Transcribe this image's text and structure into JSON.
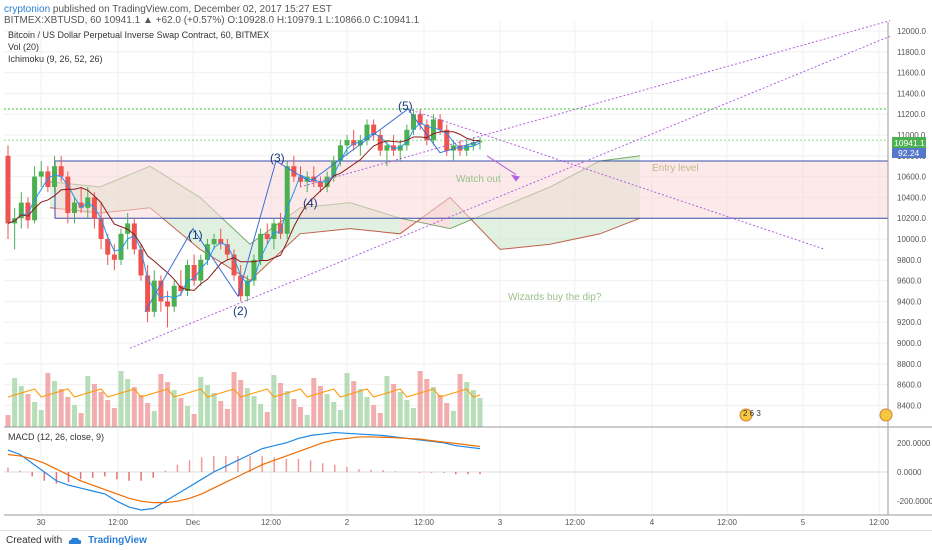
{
  "header": {
    "author": "cryptonion",
    "published_text": "published on TradingView.com, December 02, 2017 15:27 EST",
    "ohlc_line": "BITMEX:XBTUSD, 60  10941.1  ▲ +62.0 (+0.57%)  O:10928.0  H:10979.1  L:10866.0  C:10941.1"
  },
  "legend": {
    "title": "Bitcoin / US Dollar Perpetual Inverse Swap Contract, 60, BITMEX",
    "vol": "Vol (20)",
    "ichimoku": "Ichimoku (9, 26, 52, 26)",
    "macd": "MACD (12, 26, close, 9)"
  },
  "annotations": {
    "watch_out": "Watch out",
    "entry_level": "Entry level",
    "wizards": "Wizards buy the dip?",
    "wave1": "(1)",
    "wave2": "(2)",
    "wave3": "(3)",
    "wave4": "(4)",
    "wave5": "(5)",
    "badge_numbers": "2 6 3"
  },
  "price_badges": {
    "last": "10941.1",
    "second": "92.24"
  },
  "footer": {
    "created_with": "Created with",
    "brand": "TradingView"
  },
  "colors": {
    "up": "#4caf50",
    "down": "#ef5350",
    "kijun": "#8b1a1a",
    "tenkan": "#2196f3",
    "macd": "#1e88e5",
    "signal": "#ef6c00",
    "trend": "#b060e0",
    "level": "#3a4ea8",
    "green_dotted": "#33cc33"
  },
  "chart_data": {
    "type": "candlestick",
    "symbol": "BITMEX:XBTUSD",
    "interval": "60",
    "price_axis": {
      "ticks": [
        12000,
        11800,
        11600,
        11400,
        11200,
        11000,
        10800,
        10600,
        10400,
        10200,
        10000,
        9800,
        9600,
        9400,
        9200,
        9000,
        8800,
        8600,
        8400
      ]
    },
    "macd_axis": {
      "ticks": [
        200.0,
        0.0,
        -200.0
      ],
      "labels": [
        "200.0000",
        "0.0000",
        "-200.0000"
      ]
    },
    "time_axis": {
      "labels": [
        "30",
        "12:00",
        "Dec",
        "12:00",
        "2",
        "12:00",
        "3",
        "12:00",
        "4",
        "12:00",
        "5",
        "12:00"
      ]
    },
    "candles": [
      [
        10800,
        10900,
        10000,
        10150
      ],
      [
        10150,
        10300,
        9900,
        10200
      ],
      [
        10200,
        10450,
        10100,
        10350
      ],
      [
        10350,
        10400,
        10100,
        10180
      ],
      [
        10180,
        10700,
        10150,
        10600
      ],
      [
        10600,
        10750,
        10500,
        10650
      ],
      [
        10650,
        10700,
        10450,
        10500
      ],
      [
        10500,
        10800,
        10450,
        10700
      ],
      [
        10700,
        10800,
        10550,
        10600
      ],
      [
        10600,
        10650,
        10150,
        10250
      ],
      [
        10250,
        10400,
        10150,
        10350
      ],
      [
        10350,
        10500,
        10250,
        10300
      ],
      [
        10300,
        10500,
        10200,
        10400
      ],
      [
        10400,
        10450,
        10100,
        10200
      ],
      [
        10200,
        10350,
        9900,
        10000
      ],
      [
        10000,
        10050,
        9750,
        9850
      ],
      [
        9850,
        9950,
        9700,
        9800
      ],
      [
        9800,
        10100,
        9750,
        10050
      ],
      [
        10050,
        10250,
        9900,
        10150
      ],
      [
        10150,
        10200,
        9850,
        9900
      ],
      [
        9900,
        9950,
        9600,
        9650
      ],
      [
        9650,
        9750,
        9200,
        9300
      ],
      [
        9300,
        9700,
        9250,
        9600
      ],
      [
        9600,
        9650,
        9300,
        9400
      ],
      [
        9400,
        9500,
        9150,
        9350
      ],
      [
        9350,
        9600,
        9300,
        9550
      ],
      [
        9550,
        9700,
        9450,
        9500
      ],
      [
        9500,
        9800,
        9450,
        9750
      ],
      [
        9750,
        9850,
        9550,
        9600
      ],
      [
        9600,
        9850,
        9550,
        9800
      ],
      [
        9800,
        10000,
        9750,
        9950
      ],
      [
        9950,
        10050,
        9900,
        10000
      ],
      [
        10000,
        10100,
        9900,
        9950
      ],
      [
        9950,
        10000,
        9800,
        9850
      ],
      [
        9850,
        9900,
        9600,
        9650
      ],
      [
        9650,
        9750,
        9400,
        9450
      ],
      [
        9450,
        9650,
        9400,
        9600
      ],
      [
        9600,
        9850,
        9550,
        9800
      ],
      [
        9800,
        10100,
        9750,
        10050
      ],
      [
        10050,
        10150,
        9950,
        10000
      ],
      [
        10000,
        10200,
        9900,
        10150
      ],
      [
        10150,
        10250,
        10000,
        10050
      ],
      [
        10050,
        10750,
        10000,
        10700
      ],
      [
        10700,
        10800,
        10550,
        10600
      ],
      [
        10600,
        10700,
        10500,
        10550
      ],
      [
        10550,
        10650,
        10450,
        10600
      ],
      [
        10600,
        10700,
        10500,
        10550
      ],
      [
        10550,
        10600,
        10450,
        10500
      ],
      [
        10500,
        10650,
        10450,
        10600
      ],
      [
        10600,
        10800,
        10550,
        10750
      ],
      [
        10750,
        10950,
        10700,
        10900
      ],
      [
        10900,
        11000,
        10800,
        10950
      ],
      [
        10950,
        11050,
        10850,
        10900
      ],
      [
        10900,
        11000,
        10800,
        10950
      ],
      [
        10950,
        11150,
        10900,
        11100
      ],
      [
        11100,
        11150,
        10950,
        11000
      ],
      [
        11000,
        11050,
        10800,
        10850
      ],
      [
        10850,
        10950,
        10700,
        10900
      ],
      [
        10900,
        11000,
        10800,
        10850
      ],
      [
        10850,
        10950,
        10750,
        10900
      ],
      [
        10900,
        11100,
        10850,
        11050
      ],
      [
        11050,
        11250,
        11000,
        11200
      ],
      [
        11200,
        11250,
        11050,
        11100
      ],
      [
        11100,
        11150,
        10900,
        10950
      ],
      [
        10950,
        11200,
        10900,
        11150
      ],
      [
        11150,
        11200,
        11000,
        11050
      ],
      [
        11050,
        11100,
        10800,
        10850
      ],
      [
        10850,
        10950,
        10750,
        10900
      ],
      [
        10900,
        10950,
        10800,
        10850
      ],
      [
        10850,
        10950,
        10800,
        10900
      ],
      [
        10900,
        10980,
        10850,
        10930
      ],
      [
        10930,
        10980,
        10860,
        10941
      ]
    ]
  }
}
